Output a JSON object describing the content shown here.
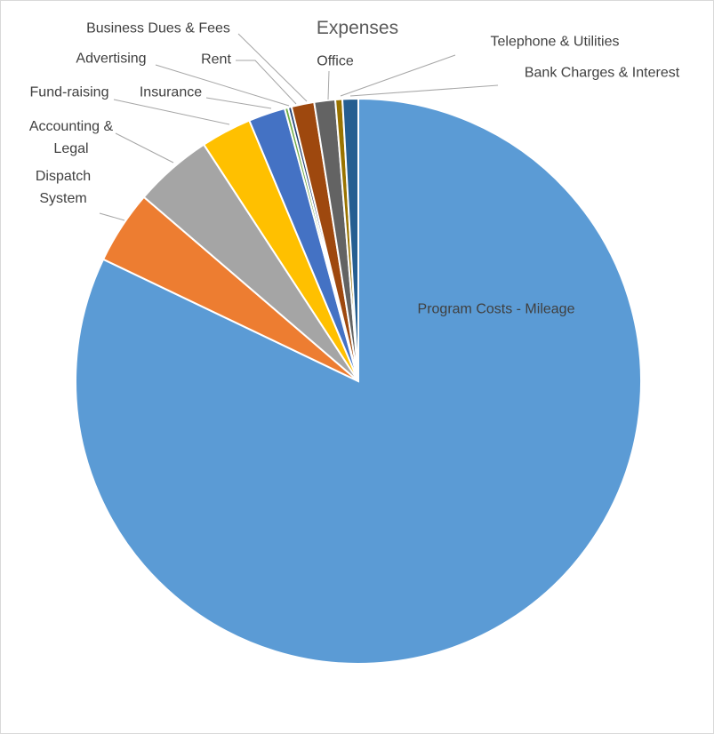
{
  "chart_data": {
    "type": "pie",
    "title": "Expenses",
    "categories": [
      "Program Costs - Mileage",
      "Dispatch System",
      "Accounting & Legal",
      "Fund-raising",
      "Insurance",
      "Advertising",
      "Rent",
      "Business Dues & Fees",
      "Office",
      "Telephone & Utilities",
      "Bank Charges & Interest"
    ],
    "values": [
      82.1,
      4.2,
      4.5,
      2.9,
      2.1,
      0.2,
      0.2,
      1.3,
      1.2,
      0.4,
      0.9
    ],
    "colors": [
      "#5b9bd5",
      "#ed7d31",
      "#a5a5a5",
      "#ffc000",
      "#4472c4",
      "#70ad47",
      "#264478",
      "#9e480e",
      "#636363",
      "#997300",
      "#255e91"
    ]
  }
}
